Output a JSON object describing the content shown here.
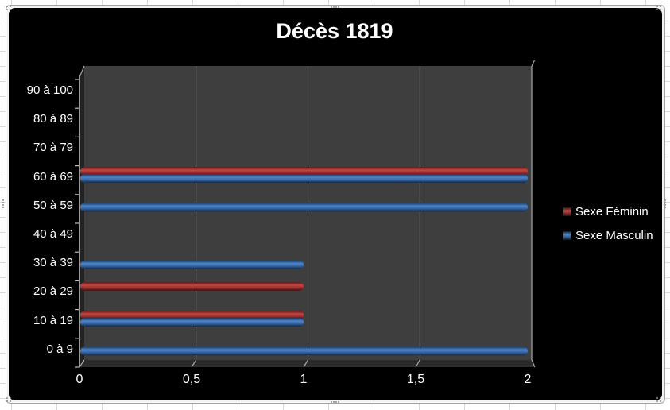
{
  "chart_data": {
    "type": "bar",
    "orientation": "horizontal",
    "style": "3d-cylinder",
    "title": "Décès 1819",
    "categories": [
      "0 à 9",
      "10 à 19",
      "20 à 29",
      "30 à 39",
      "40 à 49",
      "50 à 59",
      "60 à 69",
      "70 à 79",
      "80 à 89",
      "90 à 100"
    ],
    "series": [
      {
        "name": "Sexe Féminin",
        "color": "#b23935",
        "gradient_stops": [
          [
            "0",
            "#5f1b19"
          ],
          [
            "0.18",
            "#8e2b27"
          ],
          [
            "0.35",
            "#c24742"
          ],
          [
            "0.6",
            "#a23330"
          ],
          [
            "1",
            "#43100f"
          ]
        ],
        "values": [
          0,
          1,
          1,
          0,
          0,
          0,
          2,
          0,
          0,
          0
        ]
      },
      {
        "name": "Sexe Masculin",
        "color": "#3a6eb4",
        "gradient_stops": [
          [
            "0",
            "#203e63"
          ],
          [
            "0.18",
            "#2e5c95"
          ],
          [
            "0.35",
            "#4d84c6"
          ],
          [
            "0.6",
            "#3a6cab"
          ],
          [
            "1",
            "#132a47"
          ]
        ],
        "values": [
          2,
          1,
          0,
          1,
          0,
          2,
          2,
          0,
          0,
          0
        ]
      }
    ],
    "x_ticks": [
      {
        "label": "0",
        "value": 0
      },
      {
        "label": "0,5",
        "value": 0.5
      },
      {
        "label": "1",
        "value": 1
      },
      {
        "label": "1,5",
        "value": 1.5
      },
      {
        "label": "2",
        "value": 2
      }
    ],
    "xlim": [
      0,
      2
    ],
    "xlabel": "",
    "ylabel": "",
    "grid": true,
    "legend_position": "right",
    "background": "#000000",
    "plot_bg": "#3e3e3e"
  },
  "colors": {
    "chart_bg": "#000000",
    "wall": "#3e3e3e",
    "side_wall": "#232323",
    "floor": "#2b2b2b",
    "gridline": "#6f6f6f",
    "axis_line": "#bfbfbf",
    "edge_line": "#a6a6a6",
    "text": "#ffffff",
    "frame_bg": "#f2f2f2",
    "frame_border": "#a3a3a3",
    "sheet_grid": "#d9d9d9",
    "handle_dot": "#8c8c8c"
  }
}
